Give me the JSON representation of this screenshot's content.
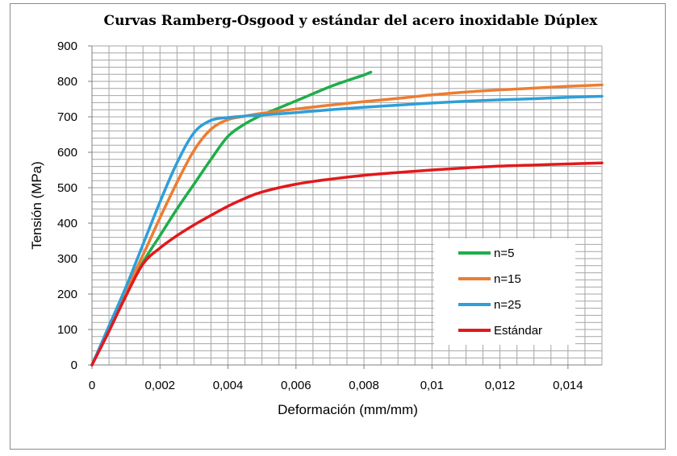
{
  "chart_data": {
    "type": "line",
    "title": "Curvas  Ramberg-Osgood  y estándar  del acero   inoxidable Dúplex",
    "xlabel": "Deformación  (mm/mm)",
    "ylabel": "Tensión (MPa)",
    "xlim": [
      0,
      0.015
    ],
    "ylim": [
      0,
      900
    ],
    "x_ticks": [
      0,
      0.002,
      0.004,
      0.006,
      0.008,
      0.01,
      0.012,
      0.014
    ],
    "x_tick_labels": [
      "0",
      "0,002",
      "0,004",
      "0,006",
      "0,008",
      "0,01",
      "0,012",
      "0,014"
    ],
    "y_ticks": [
      0,
      100,
      200,
      300,
      400,
      500,
      600,
      700,
      800,
      900
    ],
    "y_tick_labels": [
      "0",
      "100",
      "200",
      "300",
      "400",
      "500",
      "600",
      "700",
      "800",
      "900"
    ],
    "grid": true,
    "legend_position": "bottom-right",
    "series": [
      {
        "name": "n=5",
        "color": "#1fae4a",
        "x": [
          0,
          0.0005,
          0.001,
          0.0015,
          0.002,
          0.0025,
          0.003,
          0.0035,
          0.004,
          0.0045,
          0.005,
          0.0055,
          0.006,
          0.0065,
          0.007,
          0.0075,
          0.008,
          0.0082
        ],
        "y": [
          0,
          100,
          200,
          290,
          365,
          440,
          510,
          580,
          645,
          680,
          705,
          725,
          745,
          765,
          785,
          802,
          818,
          826
        ]
      },
      {
        "name": "n=15",
        "color": "#ed7d31",
        "x": [
          0,
          0.0005,
          0.001,
          0.0015,
          0.002,
          0.0025,
          0.003,
          0.0035,
          0.004,
          0.0045,
          0.005,
          0.006,
          0.007,
          0.008,
          0.009,
          0.01,
          0.011,
          0.012,
          0.013,
          0.014,
          0.015
        ],
        "y": [
          0,
          105,
          210,
          310,
          415,
          515,
          605,
          665,
          692,
          702,
          710,
          722,
          733,
          743,
          752,
          762,
          770,
          776,
          781,
          786,
          790
        ]
      },
      {
        "name": "n=25",
        "color": "#2e9fd8",
        "x": [
          0,
          0.0005,
          0.001,
          0.0015,
          0.002,
          0.0025,
          0.003,
          0.0035,
          0.004,
          0.0045,
          0.005,
          0.006,
          0.007,
          0.008,
          0.009,
          0.01,
          0.011,
          0.012,
          0.013,
          0.014,
          0.015
        ],
        "y": [
          0,
          110,
          220,
          340,
          460,
          570,
          655,
          690,
          698,
          702,
          705,
          712,
          720,
          727,
          733,
          739,
          744,
          748,
          751,
          755,
          758
        ]
      },
      {
        "name": "Estándar",
        "color": "#e2191c",
        "x": [
          0,
          0.0005,
          0.001,
          0.0015,
          0.002,
          0.0025,
          0.003,
          0.0035,
          0.004,
          0.0045,
          0.005,
          0.006,
          0.007,
          0.008,
          0.009,
          0.01,
          0.011,
          0.012,
          0.013,
          0.014,
          0.015
        ],
        "y": [
          0,
          95,
          195,
          285,
          330,
          365,
          395,
          422,
          448,
          470,
          488,
          510,
          524,
          535,
          543,
          550,
          556,
          561,
          564,
          567,
          570
        ]
      }
    ]
  }
}
